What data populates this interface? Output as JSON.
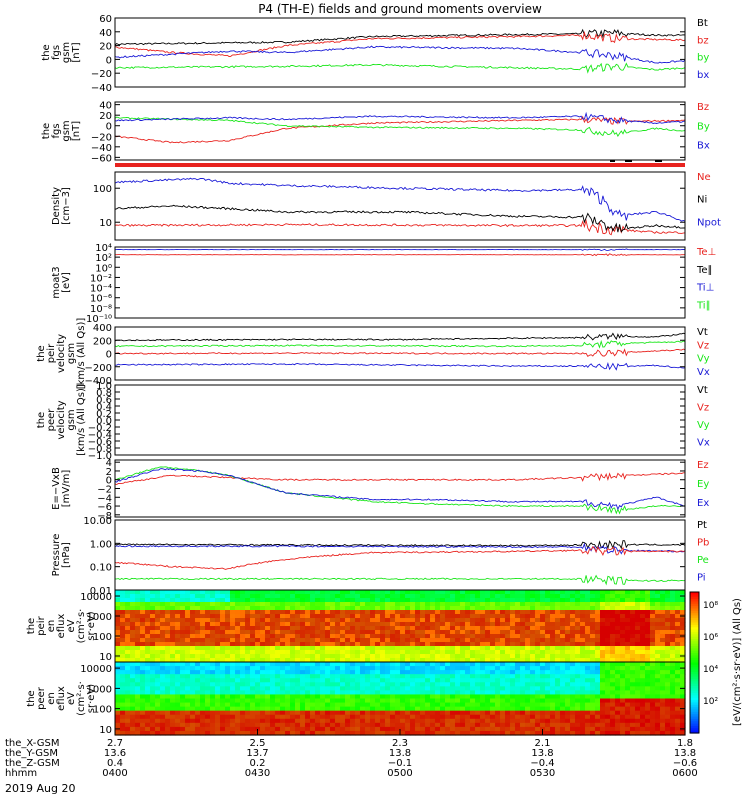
{
  "title": "P4 (TH-E) fields and ground moments overview",
  "date": "2019 Aug 20",
  "colors": {
    "black": "#000000",
    "red": "#e8231f",
    "green": "#19e619",
    "blue": "#1a1ad6"
  },
  "chart_data": [
    {
      "id": "fgs",
      "type": "line",
      "ylabel": [
        "the",
        "fgs",
        "gsm",
        "[nT]"
      ],
      "ylim": [
        -40,
        60
      ],
      "ticks": [
        "60",
        "40",
        "20",
        "0",
        "−20",
        "−40"
      ],
      "tick_values": [
        60,
        40,
        20,
        0,
        -20,
        -40
      ],
      "legend": [
        {
          "label": "Bt",
          "color": "black"
        },
        {
          "label": "bz",
          "color": "red"
        },
        {
          "label": "by",
          "color": "green"
        },
        {
          "label": "bx",
          "color": "blue"
        }
      ],
      "series": [
        {
          "name": "Bt",
          "color": "black",
          "x": [
            0,
            0.3,
            0.45,
            0.7,
            0.82,
            0.88,
            0.95,
            1
          ],
          "values": [
            22,
            25,
            33,
            36,
            37,
            38,
            35,
            35
          ]
        },
        {
          "name": "bz",
          "color": "red",
          "x": [
            0,
            0.1,
            0.2,
            0.3,
            0.45,
            0.7,
            0.82,
            0.88,
            1
          ],
          "values": [
            18,
            10,
            5,
            20,
            30,
            33,
            35,
            30,
            28
          ]
        },
        {
          "name": "by",
          "color": "green",
          "x": [
            0,
            0.3,
            0.45,
            0.7,
            0.82,
            0.88,
            0.95,
            1
          ],
          "values": [
            -12,
            -10,
            -8,
            -12,
            -14,
            -10,
            -15,
            -12
          ]
        },
        {
          "name": "bx",
          "color": "blue",
          "x": [
            0,
            0.2,
            0.3,
            0.45,
            0.7,
            0.82,
            0.88,
            0.95,
            1
          ],
          "values": [
            3,
            12,
            10,
            18,
            16,
            10,
            5,
            -5,
            -2
          ]
        }
      ]
    },
    {
      "id": "fgm",
      "type": "line",
      "ylabel": [
        "the",
        "fgs",
        "gsm",
        "[nT]"
      ],
      "ylim": [
        -65,
        45
      ],
      "ticks": [
        "40",
        "20",
        "0",
        "−20",
        "−40",
        "−60"
      ],
      "tick_values": [
        40,
        20,
        0,
        -20,
        -40,
        -60
      ],
      "legend": [
        {
          "label": "Bz",
          "color": "red"
        },
        {
          "label": "By",
          "color": "green"
        },
        {
          "label": "Bx",
          "color": "blue"
        }
      ],
      "series": [
        {
          "name": "Bz",
          "color": "red",
          "x": [
            0,
            0.1,
            0.2,
            0.3,
            0.45,
            0.7,
            0.82,
            0.88,
            1
          ],
          "values": [
            -20,
            -32,
            -28,
            -5,
            5,
            10,
            12,
            8,
            10
          ]
        },
        {
          "name": "By",
          "color": "green",
          "x": [
            0,
            0.2,
            0.3,
            0.45,
            0.7,
            0.82,
            0.88,
            0.95,
            1
          ],
          "values": [
            15,
            10,
            0,
            -3,
            -5,
            -8,
            -15,
            -5,
            -10
          ]
        },
        {
          "name": "Bx",
          "color": "blue",
          "x": [
            0,
            0.2,
            0.3,
            0.45,
            0.7,
            0.82,
            0.88,
            0.95,
            1
          ],
          "values": [
            10,
            15,
            12,
            18,
            15,
            18,
            10,
            5,
            8
          ]
        }
      ]
    },
    {
      "id": "density",
      "type": "line",
      "scale": "log",
      "ylabel": [
        "Density",
        "[cm−3]"
      ],
      "ylim": [
        3,
        300
      ],
      "ticks": [
        "100",
        "10"
      ],
      "tick_values": [
        100,
        10
      ],
      "legend": [
        {
          "label": "Ne",
          "color": "red"
        },
        {
          "label": "Ni",
          "color": "black"
        },
        {
          "label": "Npot",
          "color": "blue"
        }
      ],
      "series": [
        {
          "name": "Ne",
          "color": "red",
          "x": [
            0,
            0.3,
            0.7,
            0.82,
            0.88,
            0.95,
            1
          ],
          "values": [
            8,
            8.5,
            8,
            8,
            6,
            5,
            5
          ]
        },
        {
          "name": "Ni",
          "color": "black",
          "x": [
            0,
            0.1,
            0.2,
            0.3,
            0.5,
            0.7,
            0.82,
            0.88,
            0.95,
            1
          ],
          "values": [
            25,
            30,
            25,
            20,
            20,
            15,
            14,
            6,
            8,
            7
          ]
        },
        {
          "name": "Npot",
          "color": "blue",
          "x": [
            0,
            0.15,
            0.2,
            0.3,
            0.5,
            0.7,
            0.82,
            0.88,
            0.95,
            1
          ],
          "values": [
            150,
            190,
            140,
            120,
            100,
            85,
            90,
            15,
            20,
            10
          ]
        }
      ]
    },
    {
      "id": "moat3",
      "type": "line",
      "scale": "log",
      "ylabel": [
        "moat3",
        "[eV]"
      ],
      "ylim": [
        1e-10,
        10000.0
      ],
      "ticks": [
        "10⁴",
        "10²",
        "10⁰",
        "10⁻²",
        "10⁻⁴",
        "10⁻⁶",
        "10⁻⁸",
        "10⁻¹⁰"
      ],
      "tick_values": [
        10000.0,
        100.0,
        1,
        0.01,
        0.0001,
        1e-06,
        1e-08,
        1e-10
      ],
      "legend": [
        {
          "label": "Te⊥",
          "color": "red"
        },
        {
          "label": "Te∥",
          "color": "black"
        },
        {
          "label": "Ti⊥",
          "color": "blue"
        },
        {
          "label": "Ti∥",
          "color": "green"
        }
      ],
      "series": [
        {
          "name": "Ti⊥",
          "color": "blue",
          "x": [
            0,
            1
          ],
          "values": [
            3000,
            3000
          ]
        },
        {
          "name": "Te⊥",
          "color": "red",
          "x": [
            0,
            1
          ],
          "values": [
            300,
            300
          ]
        }
      ]
    },
    {
      "id": "peir_velocity",
      "type": "line",
      "ylabel": [
        "the",
        "peir",
        "velocity",
        "gsm",
        "[km/s (All Qs)]"
      ],
      "ylim": [
        -400,
        400
      ],
      "ticks": [
        "400",
        "200",
        "0",
        "−200",
        "−400"
      ],
      "tick_values": [
        400,
        200,
        0,
        -200,
        -400
      ],
      "legend": [
        {
          "label": "Vt",
          "color": "black"
        },
        {
          "label": "Vz",
          "color": "red"
        },
        {
          "label": "Vy",
          "color": "green"
        },
        {
          "label": "Vx",
          "color": "blue"
        }
      ],
      "series": [
        {
          "name": "Vt",
          "color": "black",
          "x": [
            0,
            0.3,
            0.5,
            0.7,
            0.82,
            0.88,
            0.95,
            1
          ],
          "values": [
            200,
            210,
            210,
            230,
            240,
            260,
            250,
            300
          ]
        },
        {
          "name": "Vy",
          "color": "green",
          "x": [
            0,
            0.3,
            0.7,
            0.82,
            0.88,
            1
          ],
          "values": [
            110,
            120,
            110,
            120,
            150,
            180
          ]
        },
        {
          "name": "Vz",
          "color": "red",
          "x": [
            0,
            0.3,
            0.7,
            0.82,
            0.88,
            1
          ],
          "values": [
            0,
            5,
            0,
            0,
            10,
            60
          ]
        },
        {
          "name": "Vx",
          "color": "blue",
          "x": [
            0,
            0.3,
            0.5,
            0.7,
            0.82,
            0.88,
            0.95,
            1
          ],
          "values": [
            -170,
            -160,
            -175,
            -190,
            -190,
            -200,
            -180,
            -220
          ]
        }
      ]
    },
    {
      "id": "peer_velocity",
      "type": "line",
      "ylabel": [
        "the",
        "peer",
        "velocity",
        "gsm",
        "[km/s (All Qs)]"
      ],
      "ylim": [
        -1,
        1
      ],
      "ticks": [
        "1.0",
        "0.8",
        "0.6",
        "0.4",
        "0.2",
        "0.0",
        "−0.2",
        "−0.4",
        "−0.6",
        "−0.8",
        "−1.0"
      ],
      "tick_values": [
        1,
        0.8,
        0.6,
        0.4,
        0.2,
        0,
        -0.2,
        -0.4,
        -0.6,
        -0.8,
        -1
      ],
      "legend": [
        {
          "label": "Vt",
          "color": "black"
        },
        {
          "label": "Vz",
          "color": "red"
        },
        {
          "label": "Vy",
          "color": "green"
        },
        {
          "label": "Vx",
          "color": "blue"
        }
      ],
      "series": []
    },
    {
      "id": "efield",
      "type": "line",
      "ylabel": [
        "E=−VxB",
        "[mV/m]"
      ],
      "ylim": [
        -8.5,
        4.5
      ],
      "ticks": [
        "4",
        "2",
        "0",
        "−2",
        "−4",
        "−6",
        "−8"
      ],
      "tick_values": [
        4,
        2,
        0,
        -2,
        -4,
        -6,
        -8
      ],
      "legend": [
        {
          "label": "Ez",
          "color": "red"
        },
        {
          "label": "Ey",
          "color": "green"
        },
        {
          "label": "Ex",
          "color": "blue"
        }
      ],
      "series": [
        {
          "name": "Ez",
          "color": "red",
          "x": [
            0,
            0.1,
            0.2,
            0.3,
            0.5,
            0.7,
            0.82,
            0.9,
            1
          ],
          "values": [
            -1,
            1,
            0.5,
            0,
            0,
            0,
            0.5,
            1,
            1.5
          ]
        },
        {
          "name": "Ey",
          "color": "green",
          "x": [
            0,
            0.08,
            0.15,
            0.2,
            0.3,
            0.45,
            0.55,
            0.7,
            0.82,
            0.88,
            0.95,
            1
          ],
          "values": [
            0,
            3,
            2,
            1,
            -3,
            -5,
            -5.5,
            -6,
            -6,
            -7,
            -6,
            -6
          ]
        },
        {
          "name": "Ex",
          "color": "blue",
          "x": [
            0,
            0.08,
            0.15,
            0.2,
            0.3,
            0.45,
            0.55,
            0.7,
            0.82,
            0.88,
            0.95,
            1
          ],
          "values": [
            -0.5,
            2.5,
            2,
            1,
            -3,
            -4.5,
            -4.5,
            -5,
            -5,
            -6,
            -4,
            -6
          ]
        }
      ]
    },
    {
      "id": "pressure",
      "type": "line",
      "scale": "log",
      "ylabel": [
        "Pressure",
        "[nPa]"
      ],
      "ylim": [
        0.01,
        10
      ],
      "ticks": [
        "10.00",
        "1.00",
        "0.10",
        "0.01"
      ],
      "tick_values": [
        10,
        1,
        0.1,
        0.01
      ],
      "legend": [
        {
          "label": "Pt",
          "color": "black"
        },
        {
          "label": "Pb",
          "color": "red"
        },
        {
          "label": "Pe",
          "color": "green"
        },
        {
          "label": "Pi",
          "color": "blue"
        }
      ],
      "series": [
        {
          "name": "Pt",
          "color": "black",
          "x": [
            0,
            0.3,
            0.7,
            0.82,
            0.88,
            1
          ],
          "values": [
            0.9,
            0.85,
            0.8,
            0.85,
            0.9,
            0.85
          ]
        },
        {
          "name": "Pi",
          "color": "blue",
          "x": [
            0,
            0.3,
            0.7,
            0.82,
            0.88,
            1
          ],
          "values": [
            0.75,
            0.75,
            0.7,
            0.7,
            0.5,
            0.45
          ]
        },
        {
          "name": "Pb",
          "color": "red",
          "x": [
            0,
            0.1,
            0.2,
            0.3,
            0.45,
            0.7,
            0.82,
            0.88,
            1
          ],
          "values": [
            0.15,
            0.1,
            0.08,
            0.2,
            0.4,
            0.45,
            0.5,
            0.45,
            0.45
          ]
        },
        {
          "name": "Pe",
          "color": "green",
          "x": [
            0,
            0.3,
            0.7,
            0.82,
            0.88,
            1
          ],
          "values": [
            0.03,
            0.03,
            0.03,
            0.03,
            0.025,
            0.025
          ]
        }
      ]
    },
    {
      "id": "peir_eflux",
      "type": "heatmap",
      "ylabel": [
        "the",
        "peir",
        "en",
        "eflux",
        "eV",
        "(cm²·s·",
        "sr·eV)"
      ],
      "ylim": [
        5,
        20000
      ],
      "ticks": [
        "10000",
        "1000",
        "100",
        "10"
      ],
      "tick_values": [
        10000,
        1000,
        100,
        10
      ]
    },
    {
      "id": "peer_eflux",
      "type": "heatmap",
      "ylabel": [
        "the",
        "peer",
        "en",
        "eflux",
        "eV",
        "(cm²·s·",
        "sr·eV)"
      ],
      "ylim": [
        5,
        20000
      ],
      "ticks": [
        "10000",
        "1000",
        "100",
        "10"
      ],
      "tick_values": [
        10000,
        1000,
        100,
        10
      ]
    }
  ],
  "colorbar": {
    "label": "[eV/(cm²·s·sr·eV)] (All Qs)",
    "ticks": [
      "10⁸",
      "10⁶",
      "10⁴",
      "10²"
    ]
  },
  "x_axis": {
    "tick_positions": [
      0,
      0.25,
      0.5,
      0.75,
      1
    ],
    "rows": [
      {
        "label": "the_X-GSM",
        "values": [
          "2.7",
          "2.5",
          "2.3",
          "2.1",
          "1.8"
        ]
      },
      {
        "label": "the_Y-GSM",
        "values": [
          "13.6",
          "13.7",
          "13.8",
          "13.8",
          "13.8"
        ]
      },
      {
        "label": "the_Z-GSM",
        "values": [
          "0.4",
          "0.2",
          "−0.1",
          "−0.4",
          "−0.6"
        ]
      },
      {
        "label": "hhmm",
        "values": [
          "0400",
          "0430",
          "0500",
          "0530",
          "0600"
        ]
      }
    ]
  }
}
